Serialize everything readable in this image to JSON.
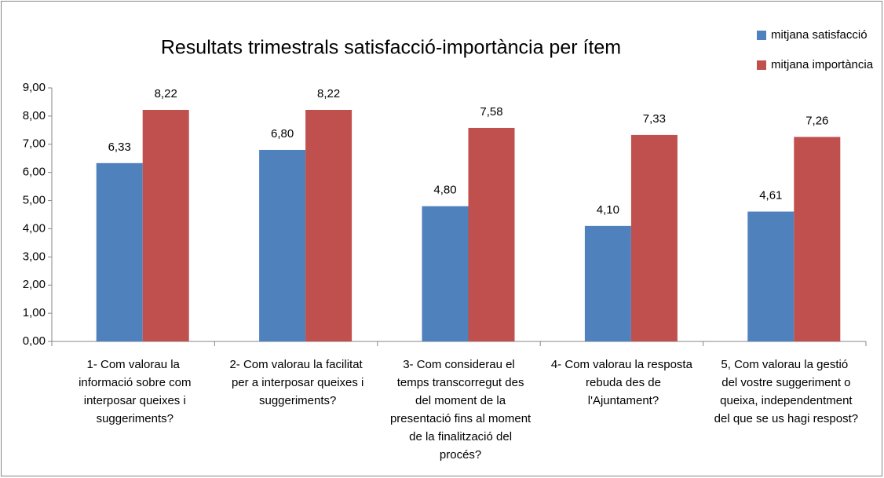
{
  "chart_data": {
    "type": "bar",
    "title": "Resultats trimestrals satisfacció-importància per ítem",
    "categories": [
      "1- Com valorau la informació sobre com interposar queixes i suggeriments?",
      "2- Com valorau la facilitat per a interposar queixes i suggeriments?",
      "3- Com considerau el temps transcorregut des del moment de la presentació fins al moment de la finalització del procés?",
      "4- Com valorau la resposta rebuda des de l'Ajuntament?",
      "5, Com valorau la gestió del vostre suggeriment o queixa, independentment del que se us hagi respost?"
    ],
    "series": [
      {
        "name": "mitjana satisfacció",
        "color": "#4f81bd",
        "values": [
          6.33,
          6.8,
          4.8,
          4.1,
          4.61
        ],
        "value_labels": [
          "6,33",
          "6,80",
          "4,80",
          "4,10",
          "4,61"
        ]
      },
      {
        "name": "mitjana importància",
        "color": "#c0504d",
        "values": [
          8.22,
          8.22,
          7.58,
          7.33,
          7.26
        ],
        "value_labels": [
          "8,22",
          "8,22",
          "7,58",
          "7,33",
          "7,26"
        ]
      }
    ],
    "ylim": [
      0,
      9
    ],
    "yticks": [
      {
        "value": 0,
        "label": "0,00"
      },
      {
        "value": 1,
        "label": "1,00"
      },
      {
        "value": 2,
        "label": "2,00"
      },
      {
        "value": 3,
        "label": "3,00"
      },
      {
        "value": 4,
        "label": "4,00"
      },
      {
        "value": 5,
        "label": "5,00"
      },
      {
        "value": 6,
        "label": "6,00"
      },
      {
        "value": 7,
        "label": "7,00"
      },
      {
        "value": 8,
        "label": "8,00"
      },
      {
        "value": 9,
        "label": "9,00"
      }
    ],
    "grid": false,
    "legend": "top-right"
  }
}
